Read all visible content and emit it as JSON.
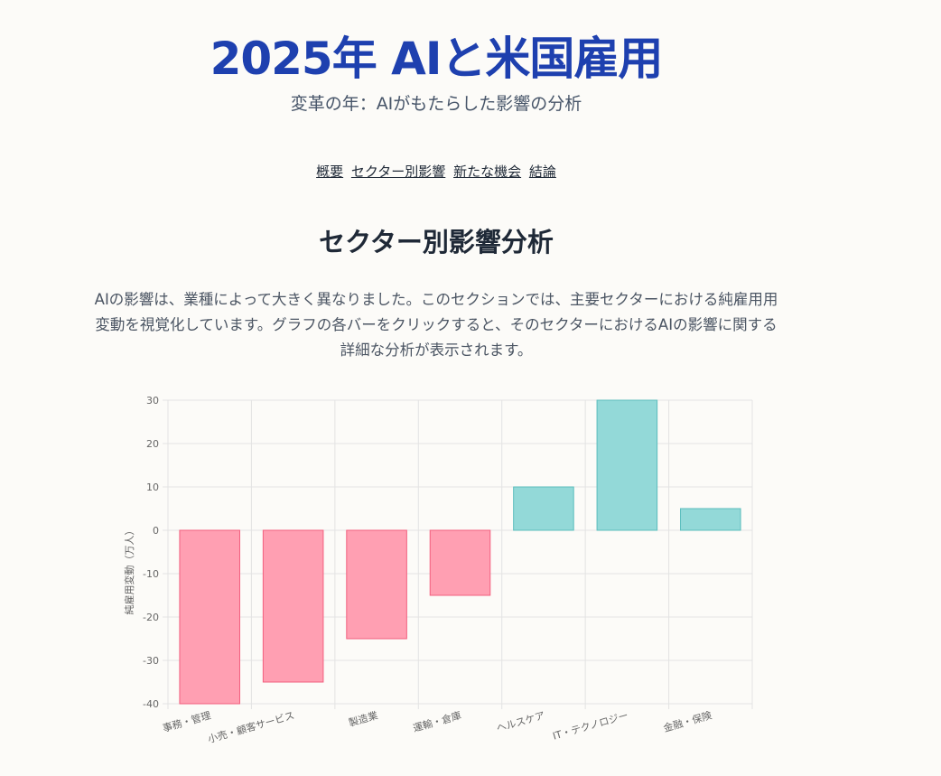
{
  "header": {
    "title": "2025年 AIと米国雇用",
    "subtitle": "変革の年：AIがもたらした影響の分析"
  },
  "nav": {
    "items": [
      {
        "label": "概要"
      },
      {
        "label": "セクター別影響"
      },
      {
        "label": "新たな機会"
      },
      {
        "label": "結論"
      }
    ]
  },
  "section": {
    "title": "セクター別影響分析",
    "description": "AIの影響は、業種によって大きく異なりました。このセクションでは、主要セクターにおける純雇用用変動を視覚化しています。グラフの各バーをクリックすると、そのセクターにおけるAIの影響に関する詳細な分析が表示されます。"
  },
  "colors": {
    "negative_fill": "#ff9fb2",
    "negative_stroke": "#f25f7e",
    "positive_fill": "#93d9d8",
    "positive_stroke": "#5bbdbd"
  },
  "chart_data": {
    "type": "bar",
    "categories": [
      "事務・管理",
      "小売・顧客サービス",
      "製造業",
      "運輸・倉庫",
      "ヘルスケア",
      "IT・テクノロジー",
      "金融・保険"
    ],
    "values": [
      -40,
      -35,
      -25,
      -15,
      10,
      30,
      5
    ],
    "ylabel": "純雇用変動（万人）",
    "ylim": [
      -40,
      30
    ],
    "yticks": [
      30,
      20,
      10,
      0,
      -10,
      -20,
      -30,
      -40
    ],
    "grid": true,
    "legend": "none"
  }
}
